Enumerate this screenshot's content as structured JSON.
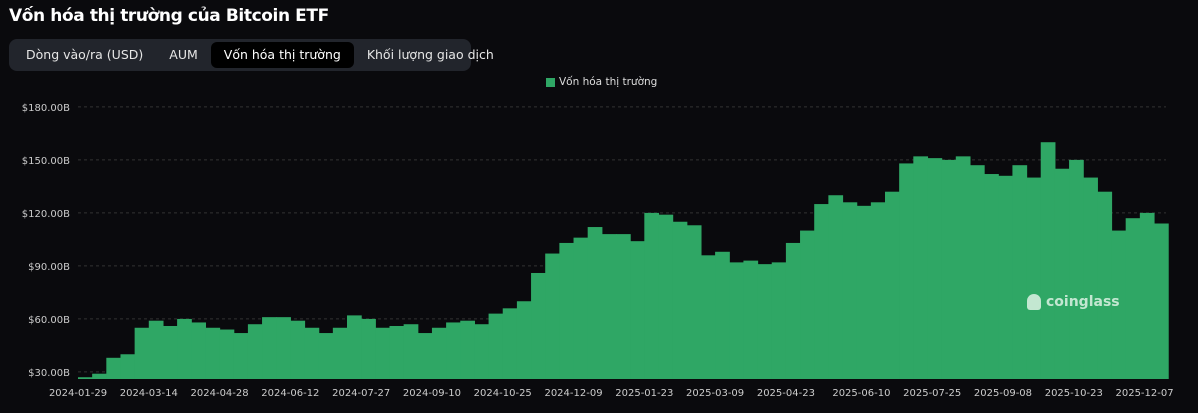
{
  "title": "Vốn hóa thị trường của Bitcoin ETF",
  "tabs": [
    {
      "label": "Dòng vào/ra (USD)",
      "active": false
    },
    {
      "label": "AUM",
      "active": false
    },
    {
      "label": "Vốn hóa thị trường",
      "active": true
    },
    {
      "label": "Khối lượng giao dịch",
      "active": false
    }
  ],
  "watermark": "coinglass",
  "colors": {
    "bar": "#2fa765",
    "background": "#0a0a0d",
    "grid": "#333333"
  },
  "chart_data": {
    "type": "bar",
    "title": "",
    "legend": {
      "entries": [
        "Vốn hóa thị trường"
      ],
      "placement": "top-center"
    },
    "grid": true,
    "ylim": [
      26,
      186
    ],
    "y_ticks": [
      30,
      60,
      90,
      120,
      150,
      180
    ],
    "y_tick_labels": [
      "$30.00B",
      "$60.00B",
      "$90.00B",
      "$120.00B",
      "$150.00B",
      "$180.00B"
    ],
    "x_tick_labels": [
      "2024-01-29",
      "2024-03-14",
      "2024-04-28",
      "2024-06-12",
      "2024-07-27",
      "2024-09-10",
      "2024-10-25",
      "2024-12-09",
      "2025-01-23",
      "2025-03-09",
      "2025-04-23",
      "2025-06-10",
      "2025-07-25",
      "2025-09-08",
      "2025-10-23",
      "2025-12-07"
    ],
    "series": [
      {
        "name": "Vốn hóa thị trường",
        "unit": "B USD",
        "x": [
          "2024-01-29",
          "2024-02-07",
          "2024-02-16",
          "2024-02-25",
          "2024-03-05",
          "2024-03-14",
          "2024-03-23",
          "2024-04-01",
          "2024-04-10",
          "2024-04-19",
          "2024-04-28",
          "2024-05-07",
          "2024-05-16",
          "2024-05-25",
          "2024-06-03",
          "2024-06-12",
          "2024-06-21",
          "2024-06-30",
          "2024-07-09",
          "2024-07-18",
          "2024-07-27",
          "2024-08-05",
          "2024-08-14",
          "2024-08-23",
          "2024-09-01",
          "2024-09-10",
          "2024-09-19",
          "2024-09-28",
          "2024-10-07",
          "2024-10-16",
          "2024-10-25",
          "2024-11-03",
          "2024-11-12",
          "2024-11-21",
          "2024-11-30",
          "2024-12-09",
          "2024-12-18",
          "2024-12-27",
          "2025-01-05",
          "2025-01-14",
          "2025-01-23",
          "2025-02-01",
          "2025-02-10",
          "2025-02-19",
          "2025-02-28",
          "2025-03-09",
          "2025-03-18",
          "2025-03-27",
          "2025-04-05",
          "2025-04-14",
          "2025-04-23",
          "2025-05-02",
          "2025-05-11",
          "2025-05-20",
          "2025-05-29",
          "2025-06-07",
          "2025-06-16",
          "2025-06-25",
          "2025-07-04",
          "2025-07-13",
          "2025-07-22",
          "2025-07-31",
          "2025-08-09",
          "2025-08-18",
          "2025-08-27",
          "2025-09-05",
          "2025-09-14",
          "2025-09-23",
          "2025-10-02",
          "2025-10-11",
          "2025-10-20",
          "2025-10-29",
          "2025-11-07",
          "2025-11-16",
          "2025-11-25",
          "2025-12-04",
          "2025-12-13"
        ],
        "values": [
          27,
          29,
          38,
          40,
          55,
          59,
          56,
          60,
          58,
          55,
          54,
          52,
          57,
          61,
          61,
          59,
          55,
          52,
          55,
          62,
          60,
          55,
          56,
          57,
          52,
          55,
          58,
          59,
          57,
          63,
          66,
          70,
          86,
          97,
          103,
          106,
          112,
          108,
          108,
          104,
          120,
          119,
          115,
          113,
          96,
          98,
          92,
          93,
          91,
          92,
          103,
          110,
          125,
          130,
          126,
          124,
          126,
          132,
          148,
          152,
          151,
          150,
          152,
          147,
          142,
          141,
          147,
          140,
          160,
          145,
          150,
          140,
          132,
          110,
          117,
          120,
          114
        ]
      }
    ]
  }
}
